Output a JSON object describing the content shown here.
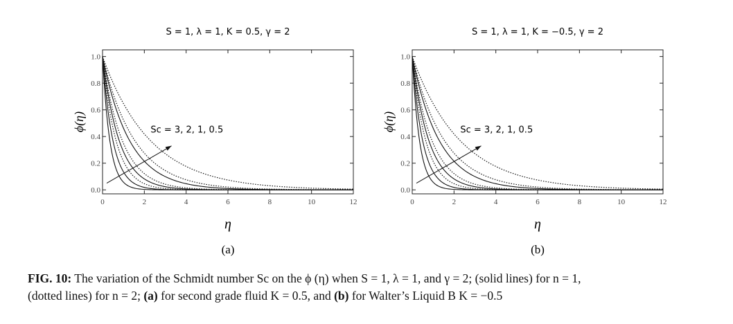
{
  "chart_data": [
    {
      "type": "line",
      "title": "S = 1, λ = 1, K = 0.5, γ = 2",
      "xlabel": "η",
      "ylabel": "ϕ(η)",
      "panel_label": "(a)",
      "annotation": "Sc = 3, 2, 1, 0.5",
      "xlim": [
        0,
        12
      ],
      "ylim": [
        -0.03,
        1.05
      ],
      "xticks": [
        "0",
        "2",
        "4",
        "6",
        "8",
        "10",
        "12"
      ],
      "yticks": [
        "0.0",
        "0.2",
        "0.4",
        "0.6",
        "0.8",
        "1.0"
      ],
      "model": "phi(eta) = exp(-eta / k)",
      "series": [
        {
          "style": "solid",
          "Sc": 3,
          "k": 0.35
        },
        {
          "style": "solid",
          "Sc": 2,
          "k": 0.5
        },
        {
          "style": "solid",
          "Sc": 1,
          "k": 0.8
        },
        {
          "style": "solid",
          "Sc": 0.5,
          "k": 1.3
        },
        {
          "style": "dotted",
          "Sc": 3,
          "k": 0.65
        },
        {
          "style": "dotted",
          "Sc": 2,
          "k": 0.95
        },
        {
          "style": "dotted",
          "Sc": 1,
          "k": 1.55
        },
        {
          "style": "dotted",
          "Sc": 0.5,
          "k": 2.3
        }
      ]
    },
    {
      "type": "line",
      "title": "S = 1, λ = 1, K = −0.5, γ = 2",
      "xlabel": "η",
      "ylabel": "ϕ(η)",
      "panel_label": "(b)",
      "annotation": "Sc = 3, 2, 1, 0.5",
      "xlim": [
        0,
        12
      ],
      "ylim": [
        -0.03,
        1.05
      ],
      "xticks": [
        "0",
        "2",
        "4",
        "6",
        "8",
        "10",
        "12"
      ],
      "yticks": [
        "0.0",
        "0.2",
        "0.4",
        "0.6",
        "0.8",
        "1.0"
      ],
      "model": "phi(eta) = exp(-eta / k)",
      "series": [
        {
          "style": "solid",
          "Sc": 3,
          "k": 0.35
        },
        {
          "style": "solid",
          "Sc": 2,
          "k": 0.5
        },
        {
          "style": "solid",
          "Sc": 1,
          "k": 0.8
        },
        {
          "style": "solid",
          "Sc": 0.5,
          "k": 1.3
        },
        {
          "style": "dotted",
          "Sc": 3,
          "k": 0.65
        },
        {
          "style": "dotted",
          "Sc": 2,
          "k": 0.95
        },
        {
          "style": "dotted",
          "Sc": 1,
          "k": 1.55
        },
        {
          "style": "dotted",
          "Sc": 0.5,
          "k": 2.3
        }
      ]
    }
  ],
  "caption": {
    "fig_label": "FIG. 10:",
    "part1": " The variation of the Schmidt number Sc on the ϕ (η) when ",
    "cond": "S = 1, λ = 1, and γ = 2; (solid lines) for n = 1,",
    "part2": "(dotted lines) for n = 2; ",
    "a_label": "(a)",
    "a_text": " for second grade fluid K = 0.5, and ",
    "b_label": "(b)",
    "b_text": " for Walter’s Liquid B K = −0.5"
  }
}
